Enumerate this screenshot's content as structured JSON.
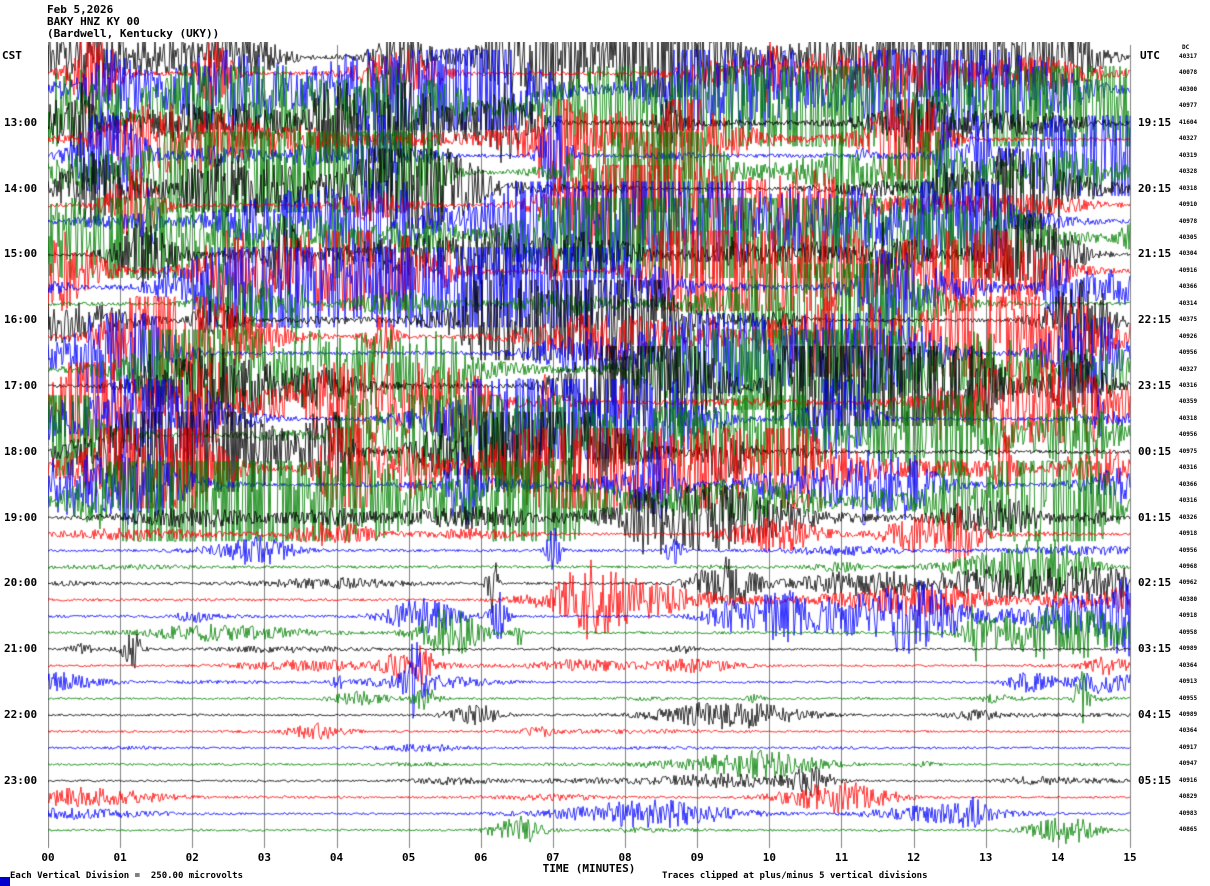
{
  "header": {
    "date": "Feb 5,2026",
    "station": "BAKY HNZ KY 00",
    "location": "(Bardwell, Kentucky (UKY))"
  },
  "axes": {
    "left_label": "CST",
    "right_label": "UTC",
    "dc_label": "DC",
    "x_title": "TIME (MINUTES)",
    "x_ticks": [
      "00",
      "01",
      "02",
      "03",
      "04",
      "05",
      "06",
      "07",
      "08",
      "09",
      "10",
      "11",
      "12",
      "13",
      "14",
      "15"
    ]
  },
  "left_times": [
    "13:00",
    "14:00",
    "15:00",
    "16:00",
    "17:00",
    "18:00",
    "19:00",
    "20:00",
    "21:00",
    "22:00",
    "23:00"
  ],
  "right_times": [
    "19:15",
    "20:15",
    "21:15",
    "22:15",
    "23:15",
    "00:15",
    "01:15",
    "02:15",
    "03:15",
    "04:15",
    "05:15"
  ],
  "dc_values": [
    "40317",
    "40078",
    "40300",
    "40977",
    "41604",
    "40327",
    "40319",
    "40328",
    "40318",
    "40910",
    "40978",
    "40305",
    "40304",
    "40916",
    "40366",
    "40314",
    "40375",
    "40926",
    "40956",
    "40327",
    "40316",
    "40359",
    "40318",
    "40956",
    "40975",
    "40316",
    "40366",
    "40316",
    "40326",
    "40918",
    "40956",
    "40968",
    "40962",
    "40380",
    "40918",
    "40958",
    "40989",
    "40364",
    "40913",
    "40955",
    "40989",
    "40364",
    "40917",
    "40947",
    "40916",
    "40829",
    "40983",
    "40865"
  ],
  "footer": {
    "left": "Each Vertical Division =  250.00 microvolts",
    "right": "Traces clipped at plus/minus 5 vertical divisions"
  },
  "colors": {
    "grid": "#808080",
    "trace_cycle": [
      "#000000",
      "#ff0000",
      "#0000ff",
      "#008000"
    ]
  },
  "chart_data": {
    "type": "line",
    "subtype": "seismogram-helicorder",
    "title": "BAKY HNZ KY 00 (Bardwell, Kentucky (UKY)) Feb 5,2026",
    "xlabel": "TIME (MINUTES)",
    "x_range_minutes": [
      0,
      15
    ],
    "minutes_per_line": 15,
    "left_axis": "CST",
    "right_axis": "UTC",
    "vertical_division_microvolts": 250.0,
    "clipping": "plus/minus 5 vertical divisions",
    "hour_labels_cst": [
      "13:00",
      "14:00",
      "15:00",
      "16:00",
      "17:00",
      "18:00",
      "19:00",
      "20:00",
      "21:00",
      "22:00",
      "23:00"
    ],
    "hour_labels_utc": [
      "19:15",
      "20:15",
      "21:15",
      "22:15",
      "23:15",
      "00:15",
      "01:15",
      "02:15",
      "03:15",
      "04:15",
      "05:15"
    ],
    "traces": [
      {
        "t": "12:00",
        "c": "#000000",
        "a": "high"
      },
      {
        "t": "12:15",
        "c": "#ff0000",
        "a": "high"
      },
      {
        "t": "12:30",
        "c": "#0000ff",
        "a": "high"
      },
      {
        "t": "12:45",
        "c": "#008000",
        "a": "high"
      },
      {
        "t": "13:00",
        "c": "#000000",
        "a": "high"
      },
      {
        "t": "13:15",
        "c": "#ff0000",
        "a": "high"
      },
      {
        "t": "13:30",
        "c": "#0000ff",
        "a": "high"
      },
      {
        "t": "13:45",
        "c": "#008000",
        "a": "high"
      },
      {
        "t": "14:00",
        "c": "#000000",
        "a": "high"
      },
      {
        "t": "14:15",
        "c": "#ff0000",
        "a": "high"
      },
      {
        "t": "14:30",
        "c": "#0000ff",
        "a": "high"
      },
      {
        "t": "14:45",
        "c": "#008000",
        "a": "high"
      },
      {
        "t": "15:00",
        "c": "#000000",
        "a": "high"
      },
      {
        "t": "15:15",
        "c": "#ff0000",
        "a": "high"
      },
      {
        "t": "15:30",
        "c": "#0000ff",
        "a": "high"
      },
      {
        "t": "15:45",
        "c": "#008000",
        "a": "high"
      },
      {
        "t": "16:00",
        "c": "#000000",
        "a": "high"
      },
      {
        "t": "16:15",
        "c": "#ff0000",
        "a": "high"
      },
      {
        "t": "16:30",
        "c": "#0000ff",
        "a": "high"
      },
      {
        "t": "16:45",
        "c": "#008000",
        "a": "high"
      },
      {
        "t": "17:00",
        "c": "#000000",
        "a": "high"
      },
      {
        "t": "17:15",
        "c": "#ff0000",
        "a": "high"
      },
      {
        "t": "17:30",
        "c": "#0000ff",
        "a": "high"
      },
      {
        "t": "17:45",
        "c": "#008000",
        "a": "high"
      },
      {
        "t": "18:00",
        "c": "#000000",
        "a": "high"
      },
      {
        "t": "18:15",
        "c": "#ff0000",
        "a": "high"
      },
      {
        "t": "18:30",
        "c": "#0000ff",
        "a": "high"
      },
      {
        "t": "18:45",
        "c": "#008000",
        "a": "high"
      },
      {
        "t": "19:00",
        "c": "#000000",
        "a": "medium"
      },
      {
        "t": "19:15",
        "c": "#ff0000",
        "a": "medium"
      },
      {
        "t": "19:30",
        "c": "#0000ff",
        "a": "medium"
      },
      {
        "t": "19:45",
        "c": "#008000",
        "a": "medium"
      },
      {
        "t": "20:00",
        "c": "#000000",
        "a": "medium"
      },
      {
        "t": "20:15",
        "c": "#ff0000",
        "a": "medium"
      },
      {
        "t": "20:30",
        "c": "#0000ff",
        "a": "medium"
      },
      {
        "t": "20:45",
        "c": "#008000",
        "a": "medium"
      },
      {
        "t": "21:00",
        "c": "#000000",
        "a": "low"
      },
      {
        "t": "21:15",
        "c": "#ff0000",
        "a": "low"
      },
      {
        "t": "21:30",
        "c": "#0000ff",
        "a": "low"
      },
      {
        "t": "21:45",
        "c": "#008000",
        "a": "low"
      },
      {
        "t": "22:00",
        "c": "#000000",
        "a": "low"
      },
      {
        "t": "22:15",
        "c": "#ff0000",
        "a": "low"
      },
      {
        "t": "22:30",
        "c": "#0000ff",
        "a": "low"
      },
      {
        "t": "22:45",
        "c": "#008000",
        "a": "low"
      },
      {
        "t": "23:00",
        "c": "#000000",
        "a": "low"
      },
      {
        "t": "23:15",
        "c": "#ff0000",
        "a": "low"
      },
      {
        "t": "23:30",
        "c": "#0000ff",
        "a": "low"
      },
      {
        "t": "23:45",
        "c": "#008000",
        "a": "low"
      }
    ]
  }
}
